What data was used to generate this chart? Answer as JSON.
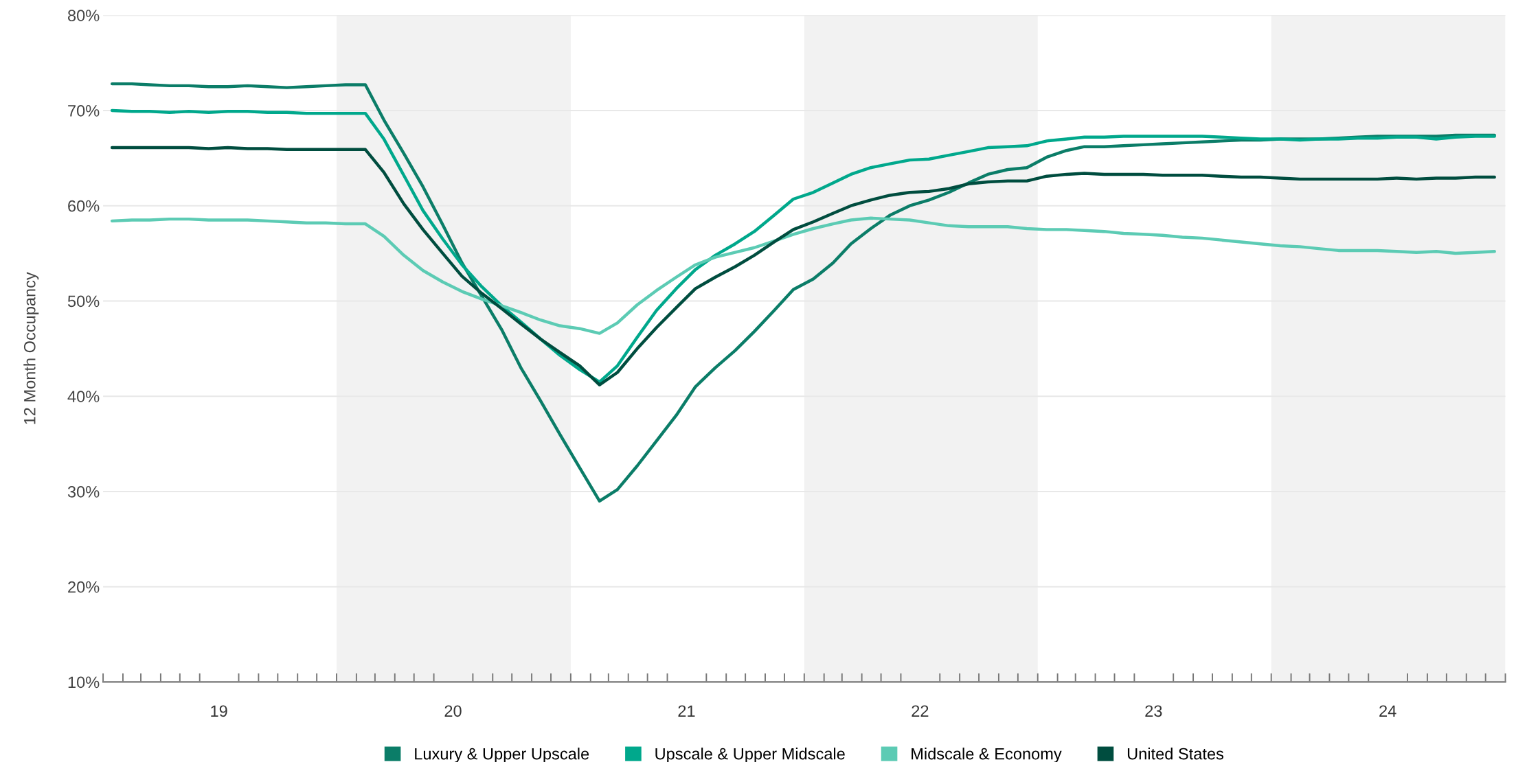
{
  "chart_data": {
    "type": "line",
    "ylabel": "12 Month Occupancy",
    "x": [
      "2019-01-15",
      "2019-02-15",
      "2019-03-15",
      "2019-04-15",
      "2019-05-15",
      "2019-06-15",
      "2019-07-15",
      "2019-08-15",
      "2019-09-15",
      "2019-10-15",
      "2019-11-15",
      "2019-12-15",
      "2020-01-15",
      "2020-02-15",
      "2020-03-15",
      "2020-04-15",
      "2020-05-15",
      "2020-06-15",
      "2020-07-15",
      "2020-08-15",
      "2020-09-15",
      "2020-10-15",
      "2020-11-15",
      "2020-12-15",
      "2021-01-15",
      "2021-02-15",
      "2021-03-15",
      "2021-04-15",
      "2021-05-15",
      "2021-06-15",
      "2021-07-15",
      "2021-08-15",
      "2021-09-15",
      "2021-10-15",
      "2021-11-15",
      "2021-12-15",
      "2022-01-15",
      "2022-02-15",
      "2022-03-15",
      "2022-04-15",
      "2022-05-15",
      "2022-06-15",
      "2022-07-15",
      "2022-08-15",
      "2022-09-15",
      "2022-10-15",
      "2022-11-15",
      "2022-12-15",
      "2023-01-15",
      "2023-02-15",
      "2023-03-15",
      "2023-04-15",
      "2023-05-15",
      "2023-06-15",
      "2023-07-15",
      "2023-08-15",
      "2023-09-15",
      "2023-10-15",
      "2023-11-15",
      "2023-12-15",
      "2024-01-15",
      "2024-02-15",
      "2024-03-15",
      "2024-04-15",
      "2024-05-15",
      "2024-06-15",
      "2024-07-15",
      "2024-08-15",
      "2024-09-15",
      "2024-10-15",
      "2024-11-15",
      "2024-12-15"
    ],
    "xlim": [
      "2019-01-01",
      "2025-01-01"
    ],
    "xticks": [
      {
        "value": "2019-07-01",
        "label": "19"
      },
      {
        "value": "2020-07-01",
        "label": "20"
      },
      {
        "value": "2021-07-01",
        "label": "21"
      },
      {
        "value": "2022-07-01",
        "label": "22"
      },
      {
        "value": "2023-07-01",
        "label": "23"
      },
      {
        "value": "2024-07-01",
        "label": "24"
      },
      {
        "value": "2019-01-01",
        "label": null
      },
      {
        "value": "2019-02-01",
        "label": null
      },
      {
        "value": "2019-03-01",
        "label": null
      },
      {
        "value": "2019-04-01",
        "label": null
      },
      {
        "value": "2019-05-01",
        "label": null
      },
      {
        "value": "2019-06-01",
        "label": null
      },
      {
        "value": "2019-08-01",
        "label": null
      },
      {
        "value": "2019-09-01",
        "label": null
      },
      {
        "value": "2019-10-01",
        "label": null
      },
      {
        "value": "2019-11-01",
        "label": null
      },
      {
        "value": "2019-12-01",
        "label": null
      },
      {
        "value": "2020-01-01",
        "label": null
      },
      {
        "value": "2020-02-01",
        "label": null
      },
      {
        "value": "2020-03-01",
        "label": null
      },
      {
        "value": "2020-04-01",
        "label": null
      },
      {
        "value": "2020-05-01",
        "label": null
      },
      {
        "value": "2020-06-01",
        "label": null
      },
      {
        "value": "2020-08-01",
        "label": null
      },
      {
        "value": "2020-09-01",
        "label": null
      },
      {
        "value": "2020-10-01",
        "label": null
      },
      {
        "value": "2020-11-01",
        "label": null
      },
      {
        "value": "2020-12-01",
        "label": null
      },
      {
        "value": "2021-01-01",
        "label": null
      },
      {
        "value": "2021-02-01",
        "label": null
      },
      {
        "value": "2021-03-01",
        "label": null
      },
      {
        "value": "2021-04-01",
        "label": null
      },
      {
        "value": "2021-05-01",
        "label": null
      },
      {
        "value": "2021-06-01",
        "label": null
      },
      {
        "value": "2021-08-01",
        "label": null
      },
      {
        "value": "2021-09-01",
        "label": null
      },
      {
        "value": "2021-10-01",
        "label": null
      },
      {
        "value": "2021-11-01",
        "label": null
      },
      {
        "value": "2021-12-01",
        "label": null
      },
      {
        "value": "2022-01-01",
        "label": null
      },
      {
        "value": "2022-02-01",
        "label": null
      },
      {
        "value": "2022-03-01",
        "label": null
      },
      {
        "value": "2022-04-01",
        "label": null
      },
      {
        "value": "2022-05-01",
        "label": null
      },
      {
        "value": "2022-06-01",
        "label": null
      },
      {
        "value": "2022-08-01",
        "label": null
      },
      {
        "value": "2022-09-01",
        "label": null
      },
      {
        "value": "2022-10-01",
        "label": null
      },
      {
        "value": "2022-11-01",
        "label": null
      },
      {
        "value": "2022-12-01",
        "label": null
      },
      {
        "value": "2023-01-01",
        "label": null
      },
      {
        "value": "2023-02-01",
        "label": null
      },
      {
        "value": "2023-03-01",
        "label": null
      },
      {
        "value": "2023-04-01",
        "label": null
      },
      {
        "value": "2023-05-01",
        "label": null
      },
      {
        "value": "2023-06-01",
        "label": null
      },
      {
        "value": "2023-08-01",
        "label": null
      },
      {
        "value": "2023-09-01",
        "label": null
      },
      {
        "value": "2023-10-01",
        "label": null
      },
      {
        "value": "2023-11-01",
        "label": null
      },
      {
        "value": "2023-12-01",
        "label": null
      },
      {
        "value": "2024-01-01",
        "label": null
      },
      {
        "value": "2024-02-01",
        "label": null
      },
      {
        "value": "2024-03-01",
        "label": null
      },
      {
        "value": "2024-04-01",
        "label": null
      },
      {
        "value": "2024-05-01",
        "label": null
      },
      {
        "value": "2024-06-01",
        "label": null
      },
      {
        "value": "2024-08-01",
        "label": null
      },
      {
        "value": "2024-09-01",
        "label": null
      },
      {
        "value": "2024-10-01",
        "label": null
      },
      {
        "value": "2024-11-01",
        "label": null
      },
      {
        "value": "2024-12-01",
        "label": null
      },
      {
        "value": "2025-01-01",
        "label": null
      }
    ],
    "ylim": [
      10,
      80
    ],
    "yticks": [
      {
        "value": 10,
        "label": "10%"
      },
      {
        "value": 20,
        "label": "20%"
      },
      {
        "value": 30,
        "label": "30%"
      },
      {
        "value": 40,
        "label": "40%"
      },
      {
        "value": 50,
        "label": "50%"
      },
      {
        "value": 60,
        "label": "60%"
      },
      {
        "value": 70,
        "label": "70%"
      },
      {
        "value": 80,
        "label": "80%"
      }
    ],
    "grid": "y",
    "legend": "bottom",
    "marker": "none",
    "line_style": "solid",
    "bands": [
      {
        "axis": "x",
        "from": "2020-01-01",
        "to": "2021-01-01",
        "color": "#f2f2f2"
      },
      {
        "axis": "x",
        "from": "2022-01-01",
        "to": "2023-01-01",
        "color": "#f2f2f2"
      },
      {
        "axis": "x",
        "from": "2024-01-01",
        "to": "2025-01-01",
        "color": "#f2f2f2"
      }
    ],
    "series": [
      {
        "name": "Luxury & Upper Upscale",
        "color": "#0b7d68",
        "values": [
          72.8,
          72.8,
          72.7,
          72.6,
          72.6,
          72.5,
          72.5,
          72.6,
          72.5,
          72.4,
          72.5,
          72.6,
          72.7,
          72.7,
          69.0,
          65.5,
          62.0,
          58.0,
          54.0,
          50.5,
          47.0,
          43.0,
          39.5,
          36.0,
          32.5,
          29.0,
          30.2,
          32.7,
          35.3,
          38.0,
          41.0,
          43.0,
          44.8,
          46.8,
          49.0,
          51.2,
          52.3,
          54.0,
          56.0,
          57.6,
          59.0,
          60.0,
          60.6,
          61.4,
          62.4,
          63.3,
          63.8,
          64.0,
          65.1,
          65.8,
          66.2,
          66.2,
          66.3,
          66.4,
          66.5,
          66.6,
          66.7,
          66.8,
          66.9,
          66.9,
          67.0,
          67.0,
          67.0,
          67.1,
          67.2,
          67.3,
          67.3,
          67.3,
          67.3,
          67.4,
          67.4,
          67.4
        ]
      },
      {
        "name": "Upscale & Upper Midscale",
        "color": "#00a88c",
        "values": [
          70.0,
          69.9,
          69.9,
          69.8,
          69.9,
          69.8,
          69.9,
          69.9,
          69.8,
          69.8,
          69.7,
          69.7,
          69.7,
          69.7,
          67.0,
          63.2,
          59.5,
          56.5,
          53.8,
          51.5,
          49.5,
          47.8,
          46.0,
          44.3,
          42.8,
          41.5,
          43.2,
          46.2,
          49.0,
          51.3,
          53.3,
          54.8,
          56.0,
          57.3,
          59.0,
          60.7,
          61.4,
          62.4,
          63.3,
          64.0,
          64.4,
          64.8,
          64.9,
          65.3,
          65.7,
          66.1,
          66.2,
          66.3,
          66.8,
          67.0,
          67.2,
          67.2,
          67.3,
          67.3,
          67.3,
          67.3,
          67.3,
          67.2,
          67.1,
          67.0,
          67.0,
          66.9,
          67.0,
          67.0,
          67.1,
          67.1,
          67.2,
          67.2,
          67.0,
          67.2,
          67.3,
          67.3
        ]
      },
      {
        "name": "Midscale & Economy",
        "color": "#5ccbb4",
        "values": [
          58.4,
          58.5,
          58.5,
          58.6,
          58.6,
          58.5,
          58.5,
          58.5,
          58.4,
          58.3,
          58.2,
          58.2,
          58.1,
          58.1,
          56.8,
          54.8,
          53.2,
          52.0,
          51.0,
          50.2,
          49.5,
          48.8,
          48.0,
          47.4,
          47.1,
          46.6,
          47.7,
          49.6,
          51.1,
          52.5,
          53.8,
          54.6,
          55.1,
          55.6,
          56.3,
          57.0,
          57.6,
          58.1,
          58.5,
          58.7,
          58.6,
          58.5,
          58.2,
          57.9,
          57.8,
          57.8,
          57.8,
          57.6,
          57.5,
          57.5,
          57.4,
          57.3,
          57.1,
          57.0,
          56.9,
          56.7,
          56.6,
          56.4,
          56.2,
          56.0,
          55.8,
          55.7,
          55.5,
          55.3,
          55.3,
          55.3,
          55.2,
          55.1,
          55.2,
          55.0,
          55.1,
          55.2
        ]
      },
      {
        "name": "United States",
        "color": "#004d3f",
        "values": [
          66.1,
          66.1,
          66.1,
          66.1,
          66.1,
          66.0,
          66.1,
          66.0,
          66.0,
          65.9,
          65.9,
          65.9,
          65.9,
          65.9,
          63.5,
          60.2,
          57.5,
          55.0,
          52.6,
          50.8,
          49.2,
          47.6,
          46.0,
          44.6,
          43.2,
          41.2,
          42.5,
          45.0,
          47.2,
          49.3,
          51.3,
          52.5,
          53.6,
          54.8,
          56.2,
          57.5,
          58.3,
          59.2,
          60.0,
          60.6,
          61.1,
          61.4,
          61.5,
          61.8,
          62.3,
          62.5,
          62.6,
          62.6,
          63.1,
          63.3,
          63.4,
          63.3,
          63.3,
          63.3,
          63.2,
          63.2,
          63.2,
          63.1,
          63.0,
          63.0,
          62.9,
          62.8,
          62.8,
          62.8,
          62.8,
          62.8,
          62.9,
          62.8,
          62.9,
          62.9,
          63.0,
          63.0
        ]
      }
    ]
  }
}
